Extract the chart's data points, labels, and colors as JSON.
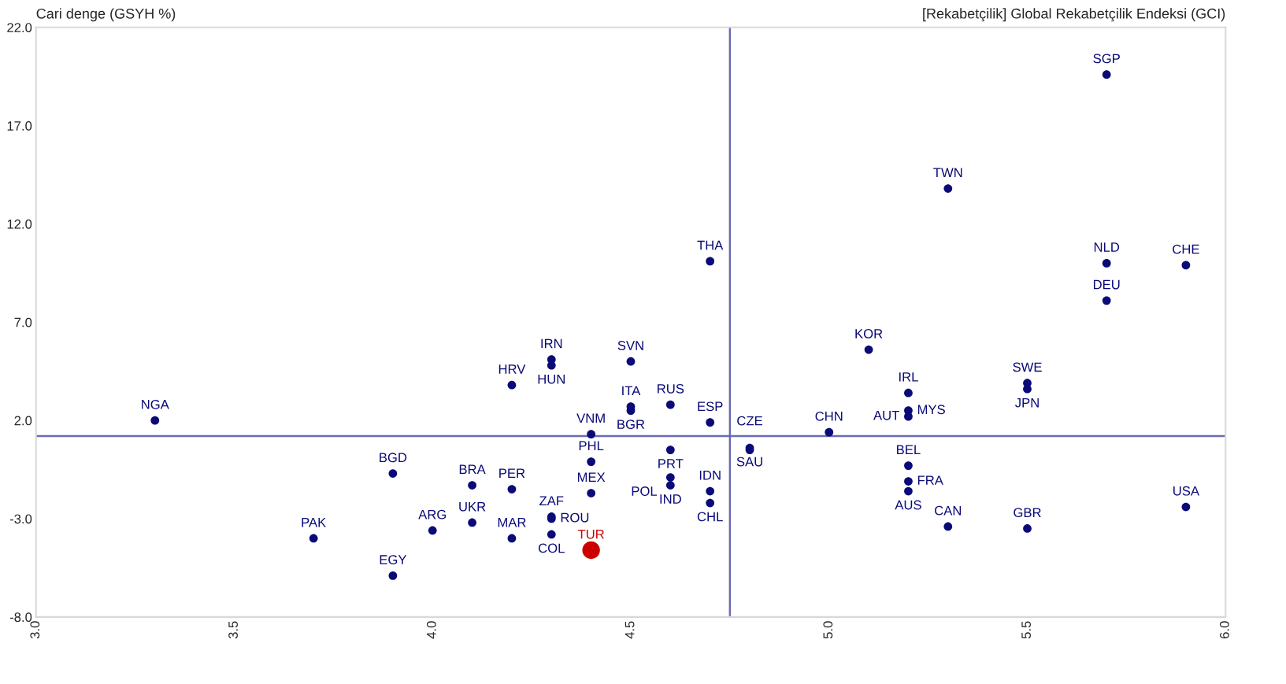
{
  "chart_data": {
    "type": "scatter",
    "xlabel": "[Rekabetçilik] Global Rekabetçilik Endeksi (GCI)",
    "ylabel": "Cari denge (GSYH %)",
    "xlim": [
      3.0,
      6.0
    ],
    "ylim": [
      -8.0,
      22.0
    ],
    "xticks": [
      {
        "value": 3.0,
        "label": "3.0"
      },
      {
        "value": 3.5,
        "label": "3.5"
      },
      {
        "value": 4.0,
        "label": "4.0"
      },
      {
        "value": 4.5,
        "label": "4.5"
      },
      {
        "value": 5.0,
        "label": "5.0"
      },
      {
        "value": 5.5,
        "label": "5.5"
      },
      {
        "value": 6.0,
        "label": "6.0"
      }
    ],
    "yticks": [
      {
        "value": -8,
        "label": "-8.0"
      },
      {
        "value": -3,
        "label": "-3.0"
      },
      {
        "value": 2,
        "label": "2.0"
      },
      {
        "value": 7,
        "label": "7.0"
      },
      {
        "value": 12,
        "label": "12.0"
      },
      {
        "value": 17,
        "label": "17.0"
      },
      {
        "value": 22,
        "label": "22.0"
      }
    ],
    "grid": false,
    "marker": "circle",
    "series": [
      {
        "color": "#0a0a78",
        "x": [
          5.7,
          5.3,
          5.7,
          5.9,
          5.7,
          4.7,
          5.1,
          4.5,
          4.3,
          4.3,
          4.2,
          3.3,
          4.5,
          4.5,
          4.6,
          4.7,
          4.4,
          4.6,
          4.8,
          4.8,
          5.0,
          5.2,
          5.2,
          5.2,
          5.5,
          5.5,
          5.2,
          5.2,
          5.2,
          5.3,
          5.5,
          5.9,
          3.9,
          3.7,
          3.9,
          4.0,
          4.1,
          4.1,
          4.2,
          4.2,
          4.3,
          4.3,
          4.3,
          4.4,
          4.4,
          4.6,
          4.6,
          4.7,
          4.7
        ],
        "values": [
          19.6,
          13.8,
          10.0,
          9.9,
          8.1,
          10.1,
          5.6,
          5.0,
          5.1,
          4.8,
          3.8,
          2.0,
          2.7,
          2.5,
          2.8,
          1.9,
          1.3,
          0.5,
          0.6,
          0.5,
          1.4,
          3.4,
          2.5,
          2.2,
          3.9,
          3.6,
          -0.3,
          -1.1,
          -1.6,
          -3.4,
          -3.5,
          -2.4,
          -0.7,
          -4.0,
          -5.9,
          -3.6,
          -3.2,
          -1.3,
          -1.5,
          -4.0,
          -2.9,
          -3.0,
          -3.8,
          -0.1,
          -1.7,
          -0.9,
          -1.3,
          -1.6,
          -2.2
        ]
      },
      {
        "color": "#cc0000",
        "x": [
          4.4
        ],
        "values": [
          -4.6
        ]
      }
    ],
    "ref_lines": [
      {
        "axis": "x",
        "value": 4.75,
        "color": "#6a6ab4"
      },
      {
        "axis": "y",
        "value": 1.2,
        "color": "#6a6ab4"
      }
    ],
    "annotations": [
      {
        "text": "SGP",
        "x": 5.7,
        "y": 19.6
      },
      {
        "text": "TWN",
        "x": 5.3,
        "y": 13.8
      },
      {
        "text": "NLD",
        "x": 5.7,
        "y": 10.0
      },
      {
        "text": "CHE",
        "x": 5.9,
        "y": 9.9
      },
      {
        "text": "DEU",
        "x": 5.7,
        "y": 8.1
      },
      {
        "text": "THA",
        "x": 4.7,
        "y": 10.1
      },
      {
        "text": "KOR",
        "x": 5.1,
        "y": 5.6
      },
      {
        "text": "SVN",
        "x": 4.5,
        "y": 5.0
      },
      {
        "text": "IRN",
        "x": 4.3,
        "y": 5.1
      },
      {
        "text": "HUN",
        "x": 4.3,
        "y": 4.8
      },
      {
        "text": "HRV",
        "x": 4.2,
        "y": 3.8
      },
      {
        "text": "NGA",
        "x": 3.3,
        "y": 2.0
      },
      {
        "text": "ITA",
        "x": 4.5,
        "y": 2.7
      },
      {
        "text": "BGR",
        "x": 4.5,
        "y": 2.5
      },
      {
        "text": "RUS",
        "x": 4.6,
        "y": 2.8
      },
      {
        "text": "ESP",
        "x": 4.7,
        "y": 1.9
      },
      {
        "text": "VNM",
        "x": 4.4,
        "y": 1.3
      },
      {
        "text": "PRT",
        "x": 4.6,
        "y": 0.5
      },
      {
        "text": "SAU",
        "x": 4.8,
        "y": 0.6
      },
      {
        "text": "CZE",
        "x": 4.8,
        "y": 0.5
      },
      {
        "text": "CHN",
        "x": 5.0,
        "y": 1.4
      },
      {
        "text": "IRL",
        "x": 5.2,
        "y": 3.4
      },
      {
        "text": "MYS",
        "x": 5.2,
        "y": 2.5
      },
      {
        "text": "AUT",
        "x": 5.2,
        "y": 2.2
      },
      {
        "text": "SWE",
        "x": 5.5,
        "y": 3.9
      },
      {
        "text": "JPN",
        "x": 5.5,
        "y": 3.6
      },
      {
        "text": "BEL",
        "x": 5.2,
        "y": -0.3
      },
      {
        "text": "FRA",
        "x": 5.2,
        "y": -1.1
      },
      {
        "text": "AUS",
        "x": 5.2,
        "y": -1.6
      },
      {
        "text": "CAN",
        "x": 5.3,
        "y": -3.4
      },
      {
        "text": "GBR",
        "x": 5.5,
        "y": -3.5
      },
      {
        "text": "USA",
        "x": 5.9,
        "y": -2.4
      },
      {
        "text": "BGD",
        "x": 3.9,
        "y": -0.7
      },
      {
        "text": "PAK",
        "x": 3.7,
        "y": -4.0
      },
      {
        "text": "EGY",
        "x": 3.9,
        "y": -5.9
      },
      {
        "text": "ARG",
        "x": 4.0,
        "y": -3.6
      },
      {
        "text": "UKR",
        "x": 4.1,
        "y": -3.2
      },
      {
        "text": "BRA",
        "x": 4.1,
        "y": -1.3
      },
      {
        "text": "PER",
        "x": 4.2,
        "y": -1.5
      },
      {
        "text": "MAR",
        "x": 4.2,
        "y": -4.0
      },
      {
        "text": "ZAF",
        "x": 4.3,
        "y": -2.9
      },
      {
        "text": "ROU",
        "x": 4.3,
        "y": -3.0
      },
      {
        "text": "COL",
        "x": 4.3,
        "y": -3.8
      },
      {
        "text": "PHL",
        "x": 4.4,
        "y": -0.1
      },
      {
        "text": "MEX",
        "x": 4.4,
        "y": -1.7
      },
      {
        "text": "POL",
        "x": 4.6,
        "y": -0.9
      },
      {
        "text": "IND",
        "x": 4.6,
        "y": -1.3
      },
      {
        "text": "IDN",
        "x": 4.7,
        "y": -1.6
      },
      {
        "text": "CHL",
        "x": 4.7,
        "y": -2.2
      },
      {
        "text": "TUR",
        "x": 4.4,
        "y": -4.6
      }
    ]
  }
}
